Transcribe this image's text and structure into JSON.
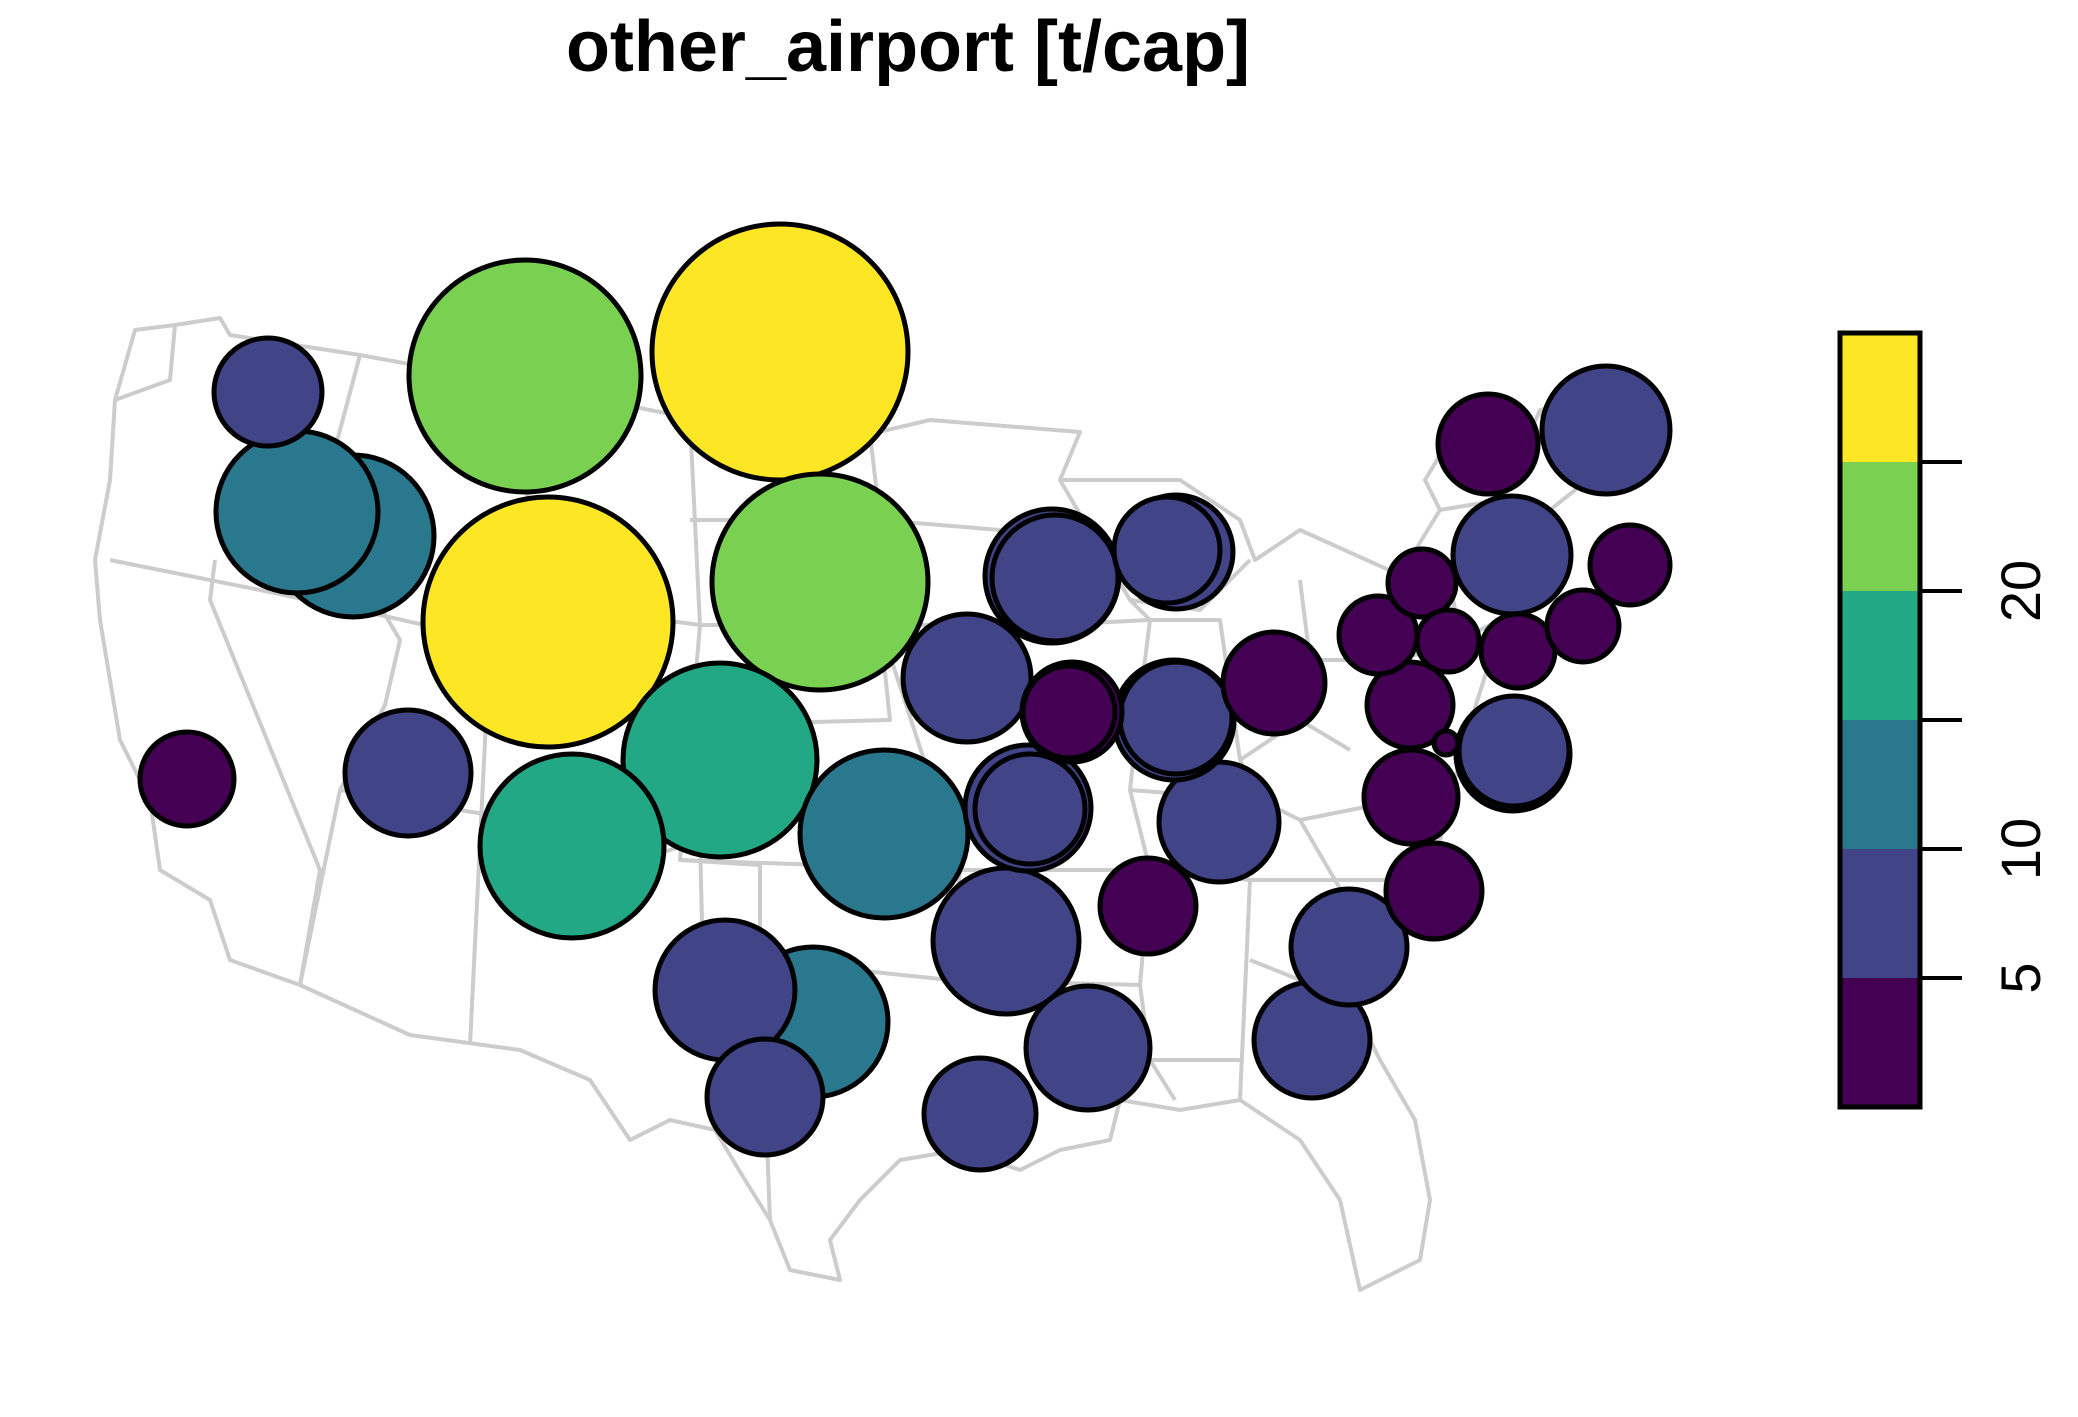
{
  "title": "other_airport [t/cap]",
  "colors": {
    "state_border": "#cccccc",
    "bubble_stroke": "#000000",
    "classes": [
      "#440154",
      "#414487",
      "#2a788e",
      "#22a884",
      "#7ad151",
      "#fde725"
    ]
  },
  "legend": {
    "class_breaks": [
      5,
      10,
      15,
      20,
      25
    ],
    "tick_labels": [
      "5",
      "10",
      "20"
    ],
    "tick_label_values": [
      5,
      10,
      20
    ]
  },
  "symbols": [
    {
      "cls": 5,
      "r": 128
    },
    {
      "cls": 5,
      "r": 125
    },
    {
      "cls": 4,
      "r": 116
    },
    {
      "cls": 4,
      "r": 108
    },
    {
      "cls": 3,
      "r": 97
    },
    {
      "cls": 3,
      "r": 92
    },
    {
      "cls": 2,
      "r": 84
    },
    {
      "cls": 2,
      "r": 81
    },
    {
      "cls": 2,
      "r": 81
    },
    {
      "cls": 2,
      "r": 75
    },
    {
      "cls": 1,
      "r": 73
    },
    {
      "cls": 1,
      "r": 70
    },
    {
      "cls": 1,
      "r": 67
    },
    {
      "cls": 1,
      "r": 64
    },
    {
      "cls": 1,
      "r": 64
    },
    {
      "cls": 1,
      "r": 63
    },
    {
      "cls": 1,
      "r": 63
    },
    {
      "cls": 1,
      "r": 63
    },
    {
      "cls": 1,
      "r": 62
    },
    {
      "cls": 1,
      "r": 60
    },
    {
      "cls": 1,
      "r": 60
    },
    {
      "cls": 1,
      "r": 59
    },
    {
      "cls": 1,
      "r": 58
    },
    {
      "cls": 1,
      "r": 58
    },
    {
      "cls": 1,
      "r": 58
    },
    {
      "cls": 1,
      "r": 57
    },
    {
      "cls": 1,
      "r": 57
    },
    {
      "cls": 1,
      "r": 56
    },
    {
      "cls": 1,
      "r": 56
    },
    {
      "cls": 1,
      "r": 55
    },
    {
      "cls": 1,
      "r": 55
    },
    {
      "cls": 1,
      "r": 54
    },
    {
      "cls": 1,
      "r": 53
    },
    {
      "cls": 0,
      "r": 51
    },
    {
      "cls": 0,
      "r": 50
    },
    {
      "cls": 0,
      "r": 50
    },
    {
      "cls": 0,
      "r": 48
    },
    {
      "cls": 0,
      "r": 48
    },
    {
      "cls": 0,
      "r": 47
    },
    {
      "cls": 0,
      "r": 47
    },
    {
      "cls": 0,
      "r": 46
    },
    {
      "cls": 0,
      "r": 43
    },
    {
      "cls": 0,
      "r": 40
    },
    {
      "cls": 0,
      "r": 39
    },
    {
      "cls": 0,
      "r": 37
    },
    {
      "cls": 0,
      "r": 36
    },
    {
      "cls": 0,
      "r": 34
    },
    {
      "cls": 0,
      "r": 31
    },
    {
      "cls": 0,
      "r": 12
    }
  ]
}
